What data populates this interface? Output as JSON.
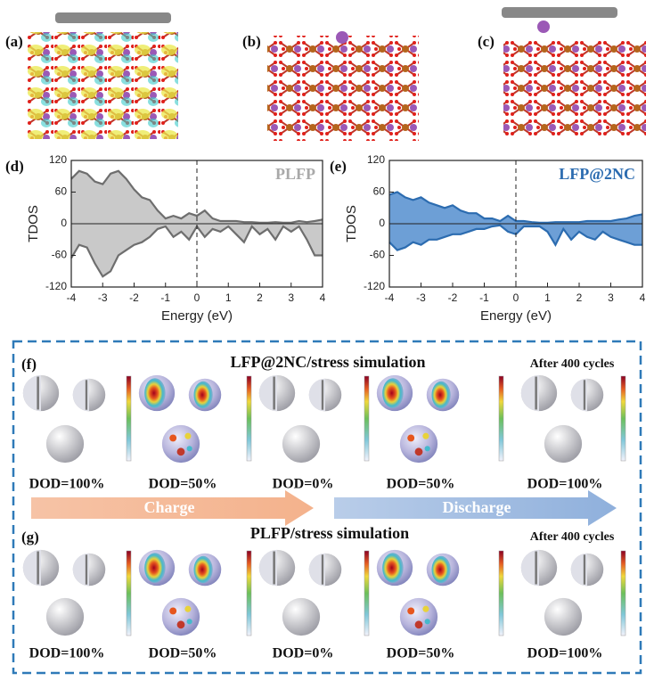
{
  "panels": {
    "a": "(a)",
    "b": "(b)",
    "c": "(c)"
  },
  "chart_data": [
    {
      "type": "area",
      "panel_label": "(d)",
      "annotation": "PLFP",
      "xlabel": "Energy (eV)",
      "ylabel": "TDOS",
      "x": [
        -4,
        -3.75,
        -3.5,
        -3.25,
        -3,
        -2.75,
        -2.5,
        -2.25,
        -2,
        -1.75,
        -1.5,
        -1.25,
        -1,
        -0.75,
        -0.5,
        -0.25,
        0,
        0.25,
        0.5,
        0.75,
        1,
        1.25,
        1.5,
        1.75,
        2,
        2.25,
        2.5,
        2.75,
        3,
        3.25,
        3.5,
        3.75,
        4
      ],
      "xlim": [
        -4,
        4
      ],
      "xticks": [
        -4,
        -3,
        -2,
        -1,
        0,
        1,
        2,
        3,
        4
      ],
      "ylim": [
        -120,
        120
      ],
      "yticks": [
        -120,
        -60,
        0,
        60,
        120
      ],
      "reference_line_x": 0,
      "series": [
        {
          "color": "#6e6e6e",
          "fill": "#c9c9c9",
          "values": [
            85,
            100,
            95,
            80,
            75,
            95,
            100,
            85,
            65,
            50,
            45,
            25,
            10,
            15,
            10,
            20,
            15,
            25,
            10,
            5,
            5,
            5,
            3,
            3,
            2,
            2,
            3,
            2,
            2,
            5,
            3,
            5,
            8
          ]
        },
        {
          "color": "#6e6e6e",
          "fill": "#c9c9c9",
          "values": [
            -65,
            -40,
            -45,
            -75,
            -100,
            -90,
            -60,
            -50,
            -40,
            -35,
            -25,
            -10,
            -5,
            -25,
            -15,
            -30,
            -5,
            -25,
            -10,
            -15,
            -5,
            -20,
            -35,
            -5,
            -20,
            -10,
            -30,
            -5,
            -15,
            -5,
            -30,
            -60,
            -60
          ]
        }
      ]
    },
    {
      "type": "area",
      "panel_label": "(e)",
      "annotation": "LFP@2NC",
      "xlabel": "Energy (eV)",
      "ylabel": "TDOS",
      "x": [
        -4,
        -3.75,
        -3.5,
        -3.25,
        -3,
        -2.75,
        -2.5,
        -2.25,
        -2,
        -1.75,
        -1.5,
        -1.25,
        -1,
        -0.75,
        -0.5,
        -0.25,
        0,
        0.25,
        0.5,
        0.75,
        1,
        1.25,
        1.5,
        1.75,
        2,
        2.25,
        2.5,
        2.75,
        3,
        3.25,
        3.5,
        3.75,
        4
      ],
      "xlim": [
        -4,
        4
      ],
      "xticks": [
        -4,
        -3,
        -2,
        -1,
        0,
        1,
        2,
        3,
        4
      ],
      "ylim": [
        -120,
        120
      ],
      "yticks": [
        -120,
        -60,
        0,
        60,
        120
      ],
      "reference_line_x": 0,
      "series": [
        {
          "color": "#2c6cb0",
          "fill": "#6d9fd6",
          "values": [
            55,
            60,
            50,
            45,
            50,
            40,
            35,
            30,
            35,
            25,
            20,
            20,
            10,
            10,
            5,
            15,
            5,
            5,
            3,
            2,
            2,
            3,
            3,
            3,
            3,
            5,
            5,
            5,
            5,
            8,
            10,
            15,
            18
          ]
        },
        {
          "color": "#2c6cb0",
          "fill": "#6d9fd6",
          "values": [
            -35,
            -50,
            -45,
            -35,
            -40,
            -30,
            -30,
            -25,
            -20,
            -20,
            -15,
            -10,
            -10,
            -5,
            -3,
            -15,
            -20,
            -5,
            -5,
            -5,
            -15,
            -40,
            -10,
            -30,
            -15,
            -25,
            -30,
            -15,
            -25,
            -30,
            -35,
            -40,
            -40
          ]
        }
      ]
    }
  ],
  "simulation": [
    {
      "label": "(f)",
      "title": "LFP@2NC/stress simulation",
      "note": "After 400 cycles",
      "dod": [
        "DOD=100%",
        "DOD=50%",
        "DOD=0%",
        "DOD=50%",
        "DOD=100%"
      ]
    },
    {
      "label": "(g)",
      "title": "PLFP/stress simulation",
      "note": "After 400 cycles",
      "dod": [
        "DOD=100%",
        "DOD=50%",
        "DOD=0%",
        "DOD=50%",
        "DOD=100%"
      ]
    }
  ],
  "arrows": [
    "Charge",
    "Discharge"
  ]
}
